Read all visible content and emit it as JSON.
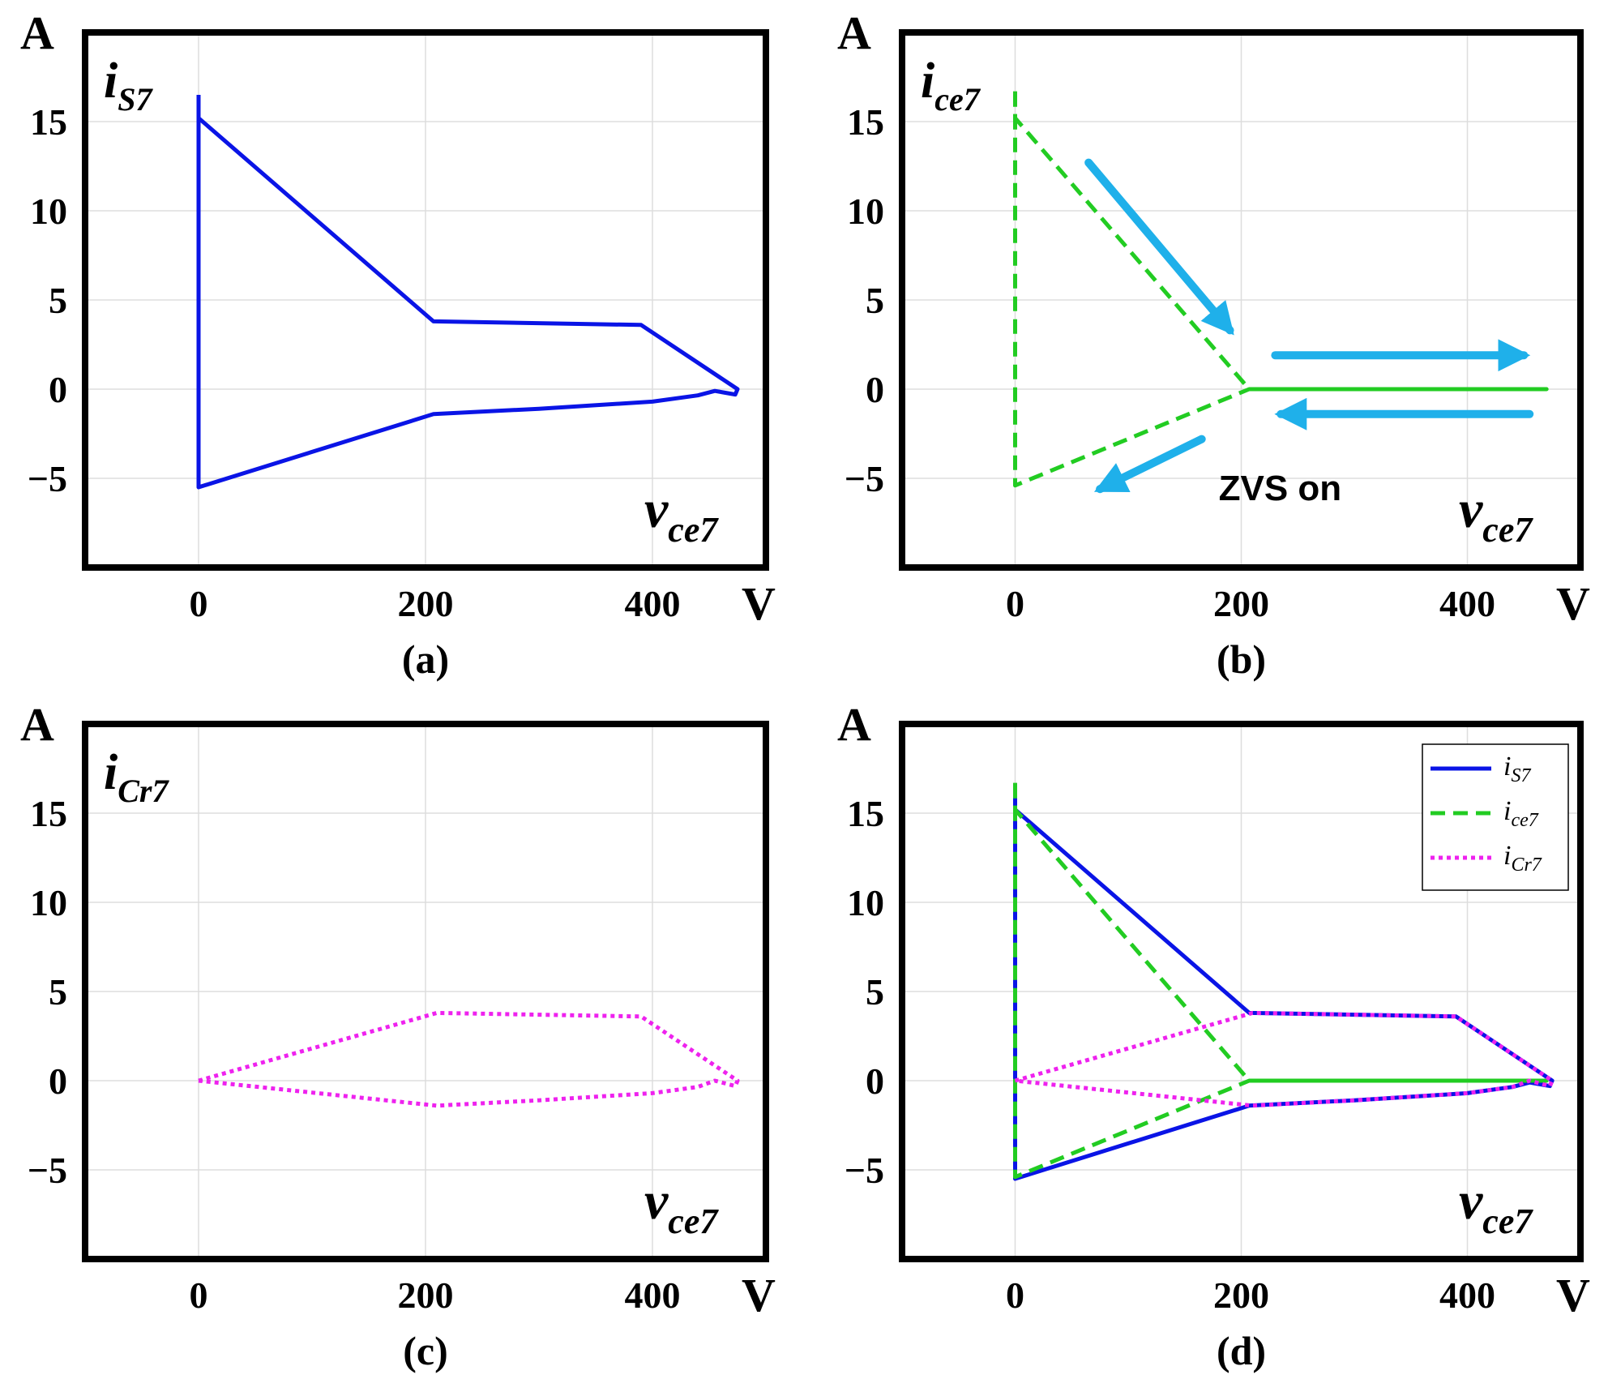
{
  "colors": {
    "is7": "#0a14e6",
    "ice7": "#22cc22",
    "icr7": "#ee22ee",
    "arrow": "#1fb0ea",
    "grid": "#dddddd",
    "frame": "#000000"
  },
  "chart_data": [
    {
      "id": "a",
      "type": "line",
      "caption": "(a)",
      "xlabel_unit": "V",
      "ylabel_unit": "A",
      "curve_label": {
        "base": "i",
        "sub": "S7"
      },
      "axis_label": {
        "base": "v",
        "sub": "ce7"
      },
      "xticks": [
        "0",
        "200",
        "400"
      ],
      "xtick_values": [
        0,
        200,
        400
      ],
      "yticks": [
        "15",
        "10",
        "5",
        "0",
        "−5"
      ],
      "ytick_values": [
        15,
        10,
        5,
        0,
        -5
      ],
      "xlim": [
        -100,
        500
      ],
      "ylim": [
        -10,
        20
      ],
      "legend": [],
      "series": [
        {
          "name": "i_S7",
          "color_key": "is7",
          "style": "solid",
          "x": [
            0,
            0,
            207,
            390,
            475,
            473,
            455,
            440,
            400,
            300,
            207,
            0,
            0
          ],
          "y": [
            16.5,
            15.2,
            3.8,
            3.6,
            0,
            -0.3,
            -0.1,
            -0.35,
            -0.7,
            -1.1,
            -1.4,
            -5.5,
            16.5
          ]
        }
      ],
      "arrows": [],
      "annotations": []
    },
    {
      "id": "b",
      "type": "line",
      "caption": "(b)",
      "xlabel_unit": "V",
      "ylabel_unit": "A",
      "curve_label": {
        "base": "i",
        "sub": "ce7"
      },
      "axis_label": {
        "base": "v",
        "sub": "ce7"
      },
      "xticks": [
        "0",
        "200",
        "400"
      ],
      "xtick_values": [
        0,
        200,
        400
      ],
      "yticks": [
        "15",
        "10",
        "5",
        "0",
        "−5"
      ],
      "ytick_values": [
        15,
        10,
        5,
        0,
        -5
      ],
      "xlim": [
        -100,
        500
      ],
      "ylim": [
        -10,
        20
      ],
      "legend": [],
      "series": [
        {
          "name": "i_ce7",
          "color_key": "ice7",
          "style": "dashed",
          "x": [
            0,
            0,
            207,
            470,
            207,
            0,
            0
          ],
          "y": [
            16.7,
            15.2,
            0,
            0,
            0,
            -5.4,
            16.7
          ]
        }
      ],
      "arrows": [
        {
          "x1": 65,
          "y1": 12.7,
          "x2": 190,
          "y2": 3.3
        },
        {
          "x1": 230,
          "y1": 1.9,
          "x2": 450,
          "y2": 1.9
        },
        {
          "x1": 455,
          "y1": -1.4,
          "x2": 235,
          "y2": -1.4
        },
        {
          "x1": 165,
          "y1": -2.8,
          "x2": 75,
          "y2": -5.6
        }
      ],
      "annotations": [
        {
          "text": "ZVS  on",
          "x": 180,
          "y": -5.6
        }
      ]
    },
    {
      "id": "c",
      "type": "line",
      "caption": "(c)",
      "xlabel_unit": "V",
      "ylabel_unit": "A",
      "curve_label": {
        "base": "i",
        "sub": "Cr7"
      },
      "axis_label": {
        "base": "v",
        "sub": "ce7"
      },
      "xticks": [
        "0",
        "200",
        "400"
      ],
      "xtick_values": [
        0,
        200,
        400
      ],
      "yticks": [
        "15",
        "10",
        "5",
        "0",
        "−5"
      ],
      "ytick_values": [
        15,
        10,
        5,
        0,
        -5
      ],
      "xlim": [
        -100,
        500
      ],
      "ylim": [
        -10,
        20
      ],
      "legend": [],
      "series": [
        {
          "name": "i_Cr7",
          "color_key": "icr7",
          "style": "dotted",
          "x": [
            0,
            210,
            390,
            475,
            473,
            455,
            440,
            400,
            300,
            210,
            0
          ],
          "y": [
            0,
            3.8,
            3.6,
            0,
            -0.3,
            0,
            -0.35,
            -0.7,
            -1.1,
            -1.4,
            0
          ]
        }
      ],
      "arrows": [],
      "annotations": []
    },
    {
      "id": "d",
      "type": "line",
      "caption": "(d)",
      "xlabel_unit": "V",
      "ylabel_unit": "A",
      "curve_label": null,
      "axis_label": {
        "base": "v",
        "sub": "ce7"
      },
      "xticks": [
        "0",
        "200",
        "400"
      ],
      "xtick_values": [
        0,
        200,
        400
      ],
      "yticks": [
        "15",
        "10",
        "5",
        "0",
        "−5"
      ],
      "ytick_values": [
        15,
        10,
        5,
        0,
        -5
      ],
      "xlim": [
        -100,
        500
      ],
      "ylim": [
        -10,
        20
      ],
      "legend": [
        {
          "base": "i",
          "sub": "S7",
          "color_key": "is7",
          "style": "solid"
        },
        {
          "base": "i",
          "sub": "ce7",
          "color_key": "ice7",
          "style": "dashed"
        },
        {
          "base": "i",
          "sub": "Cr7",
          "color_key": "icr7",
          "style": "dotted"
        }
      ],
      "series": [
        {
          "name": "i_S7",
          "color_key": "is7",
          "style": "solid",
          "x": [
            0,
            0,
            207,
            390,
            475,
            473,
            455,
            440,
            400,
            300,
            207,
            0,
            0
          ],
          "y": [
            16.5,
            15.2,
            3.8,
            3.6,
            0,
            -0.3,
            -0.1,
            -0.35,
            -0.7,
            -1.1,
            -1.4,
            -5.5,
            16.5
          ]
        },
        {
          "name": "i_ce7",
          "color_key": "ice7",
          "style": "dashed",
          "x": [
            0,
            0,
            207,
            470,
            207,
            0,
            0
          ],
          "y": [
            16.7,
            15.2,
            0,
            0,
            0,
            -5.4,
            16.7
          ]
        },
        {
          "name": "i_Cr7",
          "color_key": "icr7",
          "style": "dotted",
          "x": [
            0,
            210,
            390,
            475,
            473,
            455,
            440,
            400,
            300,
            210,
            0
          ],
          "y": [
            0,
            3.8,
            3.6,
            0,
            -0.3,
            0,
            -0.35,
            -0.7,
            -1.1,
            -1.4,
            0
          ]
        }
      ],
      "arrows": [],
      "annotations": []
    }
  ]
}
